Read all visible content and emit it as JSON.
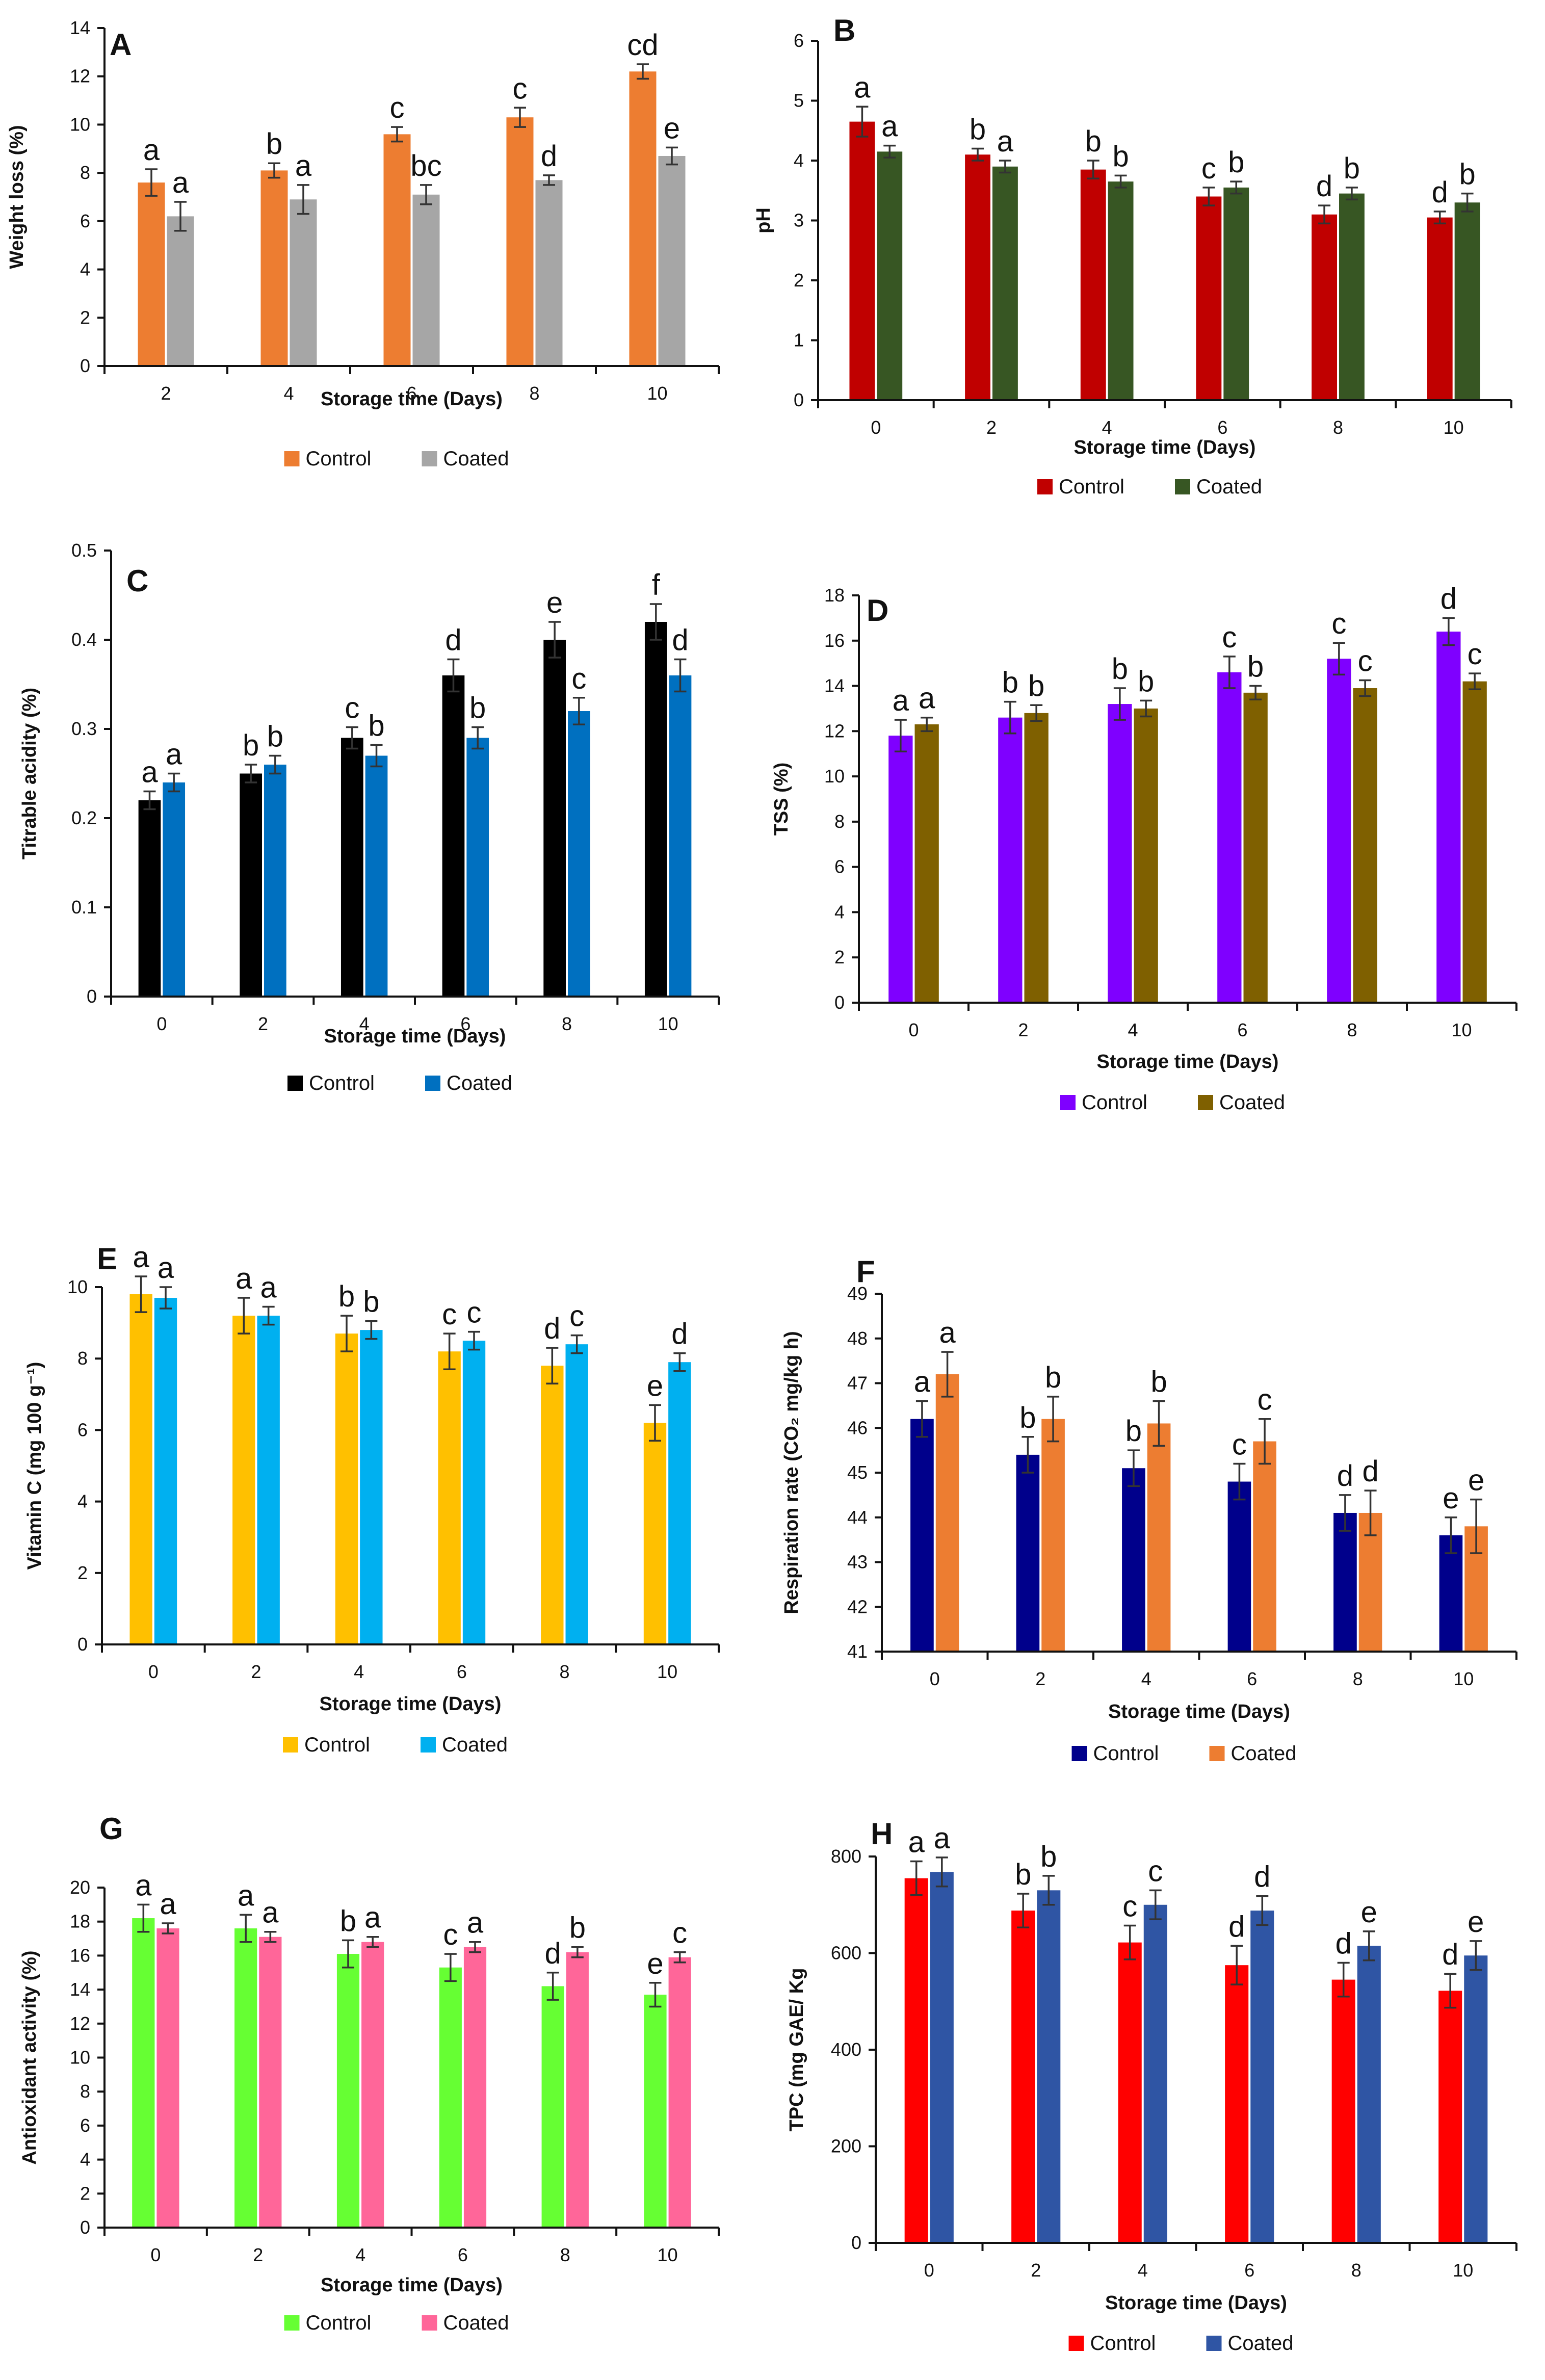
{
  "figure": {
    "legend_labels": [
      "Control",
      "Coated"
    ]
  },
  "chart_data": [
    {
      "id": "A",
      "panel_label": "A",
      "type": "bar",
      "title": "",
      "xlabel": "Storage time (Days)",
      "ylabel": "Weight loss (%)",
      "categories": [
        "2",
        "4",
        "6",
        "8",
        "10"
      ],
      "ylim": [
        0,
        14
      ],
      "yticks": [
        0,
        2,
        4,
        6,
        8,
        10,
        12,
        14
      ],
      "series": [
        {
          "name": "Control",
          "color": "#ED7D31",
          "values": [
            7.6,
            8.1,
            9.6,
            10.3,
            12.2
          ],
          "errors": [
            0.55,
            0.3,
            0.3,
            0.4,
            0.3
          ],
          "letters": [
            "a",
            "b",
            "c",
            "c",
            "cd"
          ]
        },
        {
          "name": "Coated",
          "color": "#A6A6A6",
          "values": [
            6.2,
            6.9,
            7.1,
            7.7,
            8.7
          ],
          "errors": [
            0.6,
            0.6,
            0.4,
            0.2,
            0.35
          ],
          "letters": [
            "a",
            "a",
            "bc",
            "d",
            "e"
          ]
        }
      ]
    },
    {
      "id": "B",
      "panel_label": "B",
      "type": "bar",
      "title": "",
      "xlabel": "Storage time (Days)",
      "ylabel": "pH",
      "categories": [
        "0",
        "2",
        "4",
        "6",
        "8",
        "10"
      ],
      "ylim": [
        0,
        6
      ],
      "yticks": [
        0,
        1,
        2,
        3,
        4,
        5,
        6
      ],
      "series": [
        {
          "name": "Control",
          "color": "#C00000",
          "values": [
            4.65,
            4.1,
            3.85,
            3.4,
            3.1,
            3.05
          ],
          "errors": [
            0.25,
            0.1,
            0.15,
            0.15,
            0.15,
            0.1
          ],
          "letters": [
            "a",
            "b",
            "b",
            "c",
            "d",
            "d"
          ]
        },
        {
          "name": "Coated",
          "color": "#375623",
          "values": [
            4.15,
            3.9,
            3.65,
            3.55,
            3.45,
            3.3
          ],
          "errors": [
            0.1,
            0.1,
            0.1,
            0.1,
            0.1,
            0.15
          ],
          "letters": [
            "a",
            "a",
            "b",
            "b",
            "b",
            "b"
          ]
        }
      ]
    },
    {
      "id": "C",
      "panel_label": "C",
      "type": "bar",
      "title": "",
      "xlabel": "Storage time (Days)",
      "ylabel": "Titrable acidity (%)",
      "categories": [
        "0",
        "2",
        "4",
        "6",
        "8",
        "10"
      ],
      "ylim": [
        0,
        0.5
      ],
      "yticks": [
        0,
        0.1,
        0.2,
        0.3,
        0.4,
        0.5
      ],
      "series": [
        {
          "name": "Control",
          "color": "#000000",
          "values": [
            0.22,
            0.25,
            0.29,
            0.36,
            0.4,
            0.42
          ],
          "errors": [
            0.01,
            0.01,
            0.012,
            0.018,
            0.02,
            0.02
          ],
          "letters": [
            "a",
            "b",
            "c",
            "d",
            "e",
            "f"
          ]
        },
        {
          "name": "Coated",
          "color": "#0070C0",
          "values": [
            0.24,
            0.26,
            0.27,
            0.29,
            0.32,
            0.36
          ],
          "errors": [
            0.01,
            0.01,
            0.012,
            0.012,
            0.015,
            0.018
          ],
          "letters": [
            "a",
            "b",
            "b",
            "b",
            "c",
            "d"
          ]
        }
      ]
    },
    {
      "id": "D",
      "panel_label": "D",
      "type": "bar",
      "title": "",
      "xlabel": "Storage time (Days)",
      "ylabel": "TSS (%)",
      "categories": [
        "0",
        "2",
        "4",
        "6",
        "8",
        "10"
      ],
      "ylim": [
        0,
        18
      ],
      "yticks": [
        0,
        2,
        4,
        6,
        8,
        10,
        12,
        14,
        16,
        18
      ],
      "series": [
        {
          "name": "Control",
          "color": "#7F00FF",
          "values": [
            11.8,
            12.6,
            13.2,
            14.6,
            15.2,
            16.4
          ],
          "errors": [
            0.7,
            0.7,
            0.7,
            0.7,
            0.7,
            0.6
          ],
          "letters": [
            "a",
            "b",
            "b",
            "c",
            "c",
            "d"
          ]
        },
        {
          "name": "Coated",
          "color": "#7F6000",
          "values": [
            12.3,
            12.8,
            13.0,
            13.7,
            13.9,
            14.2
          ],
          "errors": [
            0.3,
            0.35,
            0.35,
            0.3,
            0.35,
            0.35
          ],
          "letters": [
            "a",
            "b",
            "b",
            "b",
            "c",
            "c"
          ]
        }
      ]
    },
    {
      "id": "E",
      "panel_label": "E",
      "type": "bar",
      "title": "",
      "xlabel": "Storage time (Days)",
      "ylabel": "Vitamin C (mg 100 g⁻¹)",
      "categories": [
        "0",
        "2",
        "4",
        "6",
        "8",
        "10"
      ],
      "ylim": [
        0,
        10
      ],
      "yticks": [
        0,
        2,
        4,
        6,
        8,
        10
      ],
      "series": [
        {
          "name": "Control",
          "color": "#FFC000",
          "values": [
            9.8,
            9.2,
            8.7,
            8.2,
            7.8,
            6.2
          ],
          "errors": [
            0.5,
            0.5,
            0.5,
            0.5,
            0.5,
            0.5
          ],
          "letters": [
            "a",
            "a",
            "b",
            "c",
            "d",
            "e"
          ]
        },
        {
          "name": "Coated",
          "color": "#00B0F0",
          "values": [
            9.7,
            9.2,
            8.8,
            8.5,
            8.4,
            7.9
          ],
          "errors": [
            0.3,
            0.25,
            0.25,
            0.25,
            0.25,
            0.25
          ],
          "letters": [
            "a",
            "a",
            "b",
            "c",
            "c",
            "d"
          ]
        }
      ]
    },
    {
      "id": "F",
      "panel_label": "F",
      "type": "bar",
      "title": "",
      "xlabel": "Storage time (Days)",
      "ylabel": "Respiration rate (CO₂ mg/kg h)",
      "categories": [
        "0",
        "2",
        "4",
        "6",
        "8",
        "10"
      ],
      "ylim": [
        41,
        49
      ],
      "yticks": [
        41,
        42,
        43,
        44,
        45,
        46,
        47,
        48,
        49
      ],
      "series": [
        {
          "name": "Control",
          "color": "#00008B",
          "values": [
            46.2,
            45.4,
            45.1,
            44.8,
            44.1,
            43.6
          ],
          "errors": [
            0.4,
            0.4,
            0.4,
            0.4,
            0.4,
            0.4
          ],
          "letters": [
            "a",
            "b",
            "b",
            "c",
            "d",
            "e"
          ]
        },
        {
          "name": "Coated",
          "color": "#ED7D31",
          "values": [
            47.2,
            46.2,
            46.1,
            45.7,
            44.1,
            43.8
          ],
          "errors": [
            0.5,
            0.5,
            0.5,
            0.5,
            0.5,
            0.6
          ],
          "letters": [
            "a",
            "b",
            "b",
            "c",
            "d",
            "e"
          ]
        }
      ]
    },
    {
      "id": "G",
      "panel_label": "G",
      "type": "bar",
      "title": "",
      "xlabel": "Storage time (Days)",
      "ylabel": "Antioxidant activity (%)",
      "categories": [
        "0",
        "2",
        "4",
        "6",
        "8",
        "10"
      ],
      "ylim": [
        0,
        20
      ],
      "yticks": [
        0,
        2,
        4,
        6,
        8,
        10,
        12,
        14,
        16,
        18,
        20
      ],
      "series": [
        {
          "name": "Control",
          "color": "#66FF33",
          "values": [
            18.2,
            17.6,
            16.1,
            15.3,
            14.2,
            13.7
          ],
          "errors": [
            0.8,
            0.8,
            0.8,
            0.8,
            0.8,
            0.7
          ],
          "letters": [
            "a",
            "a",
            "b",
            "c",
            "d",
            "e"
          ]
        },
        {
          "name": "Coated",
          "color": "#FF6699",
          "values": [
            17.6,
            17.1,
            16.8,
            16.5,
            16.2,
            15.9
          ],
          "errors": [
            0.3,
            0.3,
            0.3,
            0.3,
            0.3,
            0.3
          ],
          "letters": [
            "a",
            "a",
            "a",
            "a",
            "b",
            "c"
          ]
        }
      ]
    },
    {
      "id": "H",
      "panel_label": "H",
      "type": "bar",
      "title": "",
      "xlabel": "Storage time (Days)",
      "ylabel": "TPC (mg GAE/ Kg",
      "categories": [
        "0",
        "2",
        "4",
        "6",
        "8",
        "10"
      ],
      "ylim": [
        0,
        800
      ],
      "yticks": [
        0,
        200,
        400,
        600,
        800
      ],
      "series": [
        {
          "name": "Control",
          "color": "#FF0000",
          "values": [
            755,
            688,
            622,
            575,
            545,
            522
          ],
          "errors": [
            35,
            35,
            35,
            40,
            35,
            35
          ],
          "letters": [
            "a",
            "b",
            "c",
            "d",
            "d",
            "d"
          ]
        },
        {
          "name": "Coated",
          "color": "#2F55A4",
          "values": [
            768,
            730,
            700,
            688,
            615,
            595
          ],
          "errors": [
            30,
            30,
            30,
            30,
            30,
            30
          ],
          "letters": [
            "a",
            "b",
            "c",
            "d",
            "e",
            "e"
          ]
        }
      ]
    }
  ]
}
